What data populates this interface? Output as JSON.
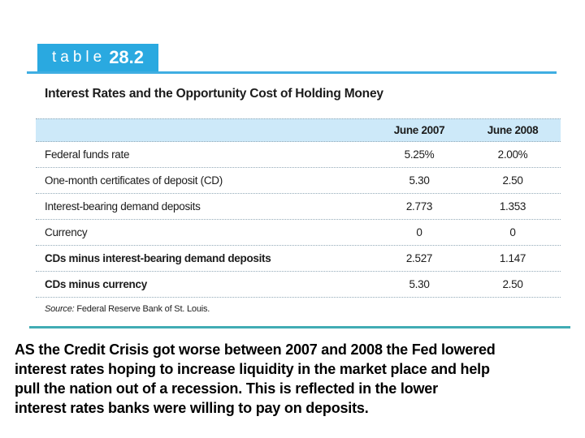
{
  "tab": {
    "word": "table",
    "number": "28.2"
  },
  "table": {
    "title": "Interest Rates and the Opportunity Cost of Holding Money",
    "columns": [
      "June 2007",
      "June 2008"
    ],
    "rows": [
      {
        "label": "Federal funds rate",
        "values": [
          "5.25%",
          "2.00%"
        ]
      },
      {
        "label": "One-month certificates of deposit (CD)",
        "values": [
          "5.30",
          "2.50"
        ]
      },
      {
        "label": "Interest-bearing demand deposits",
        "values": [
          "2.773",
          "1.353"
        ]
      },
      {
        "label": "Currency",
        "values": [
          "0",
          "0"
        ]
      },
      {
        "label": "CDs minus interest-bearing demand deposits",
        "values": [
          "2.527",
          "1.147"
        ]
      },
      {
        "label": "CDs minus currency",
        "values": [
          "5.30",
          "2.50"
        ]
      }
    ],
    "source_label": "Source:",
    "source_text": "Federal Reserve Bank of St. Louis."
  },
  "caption": {
    "lines": [
      "AS the Credit Crisis got worse between 2007 and 2008 the Fed lowered",
      "interest rates hoping to increase liquidity in the market place and help",
      "pull the nation out of a recession.  This is reflected in the lower",
      "interest rates banks were willing to pay on deposits."
    ]
  },
  "colors": {
    "tab_cyan": "#2aa9e0",
    "rule_cyan": "#3faee2",
    "header_band": "#cde9f9",
    "rule_teal": "#41acb4"
  }
}
